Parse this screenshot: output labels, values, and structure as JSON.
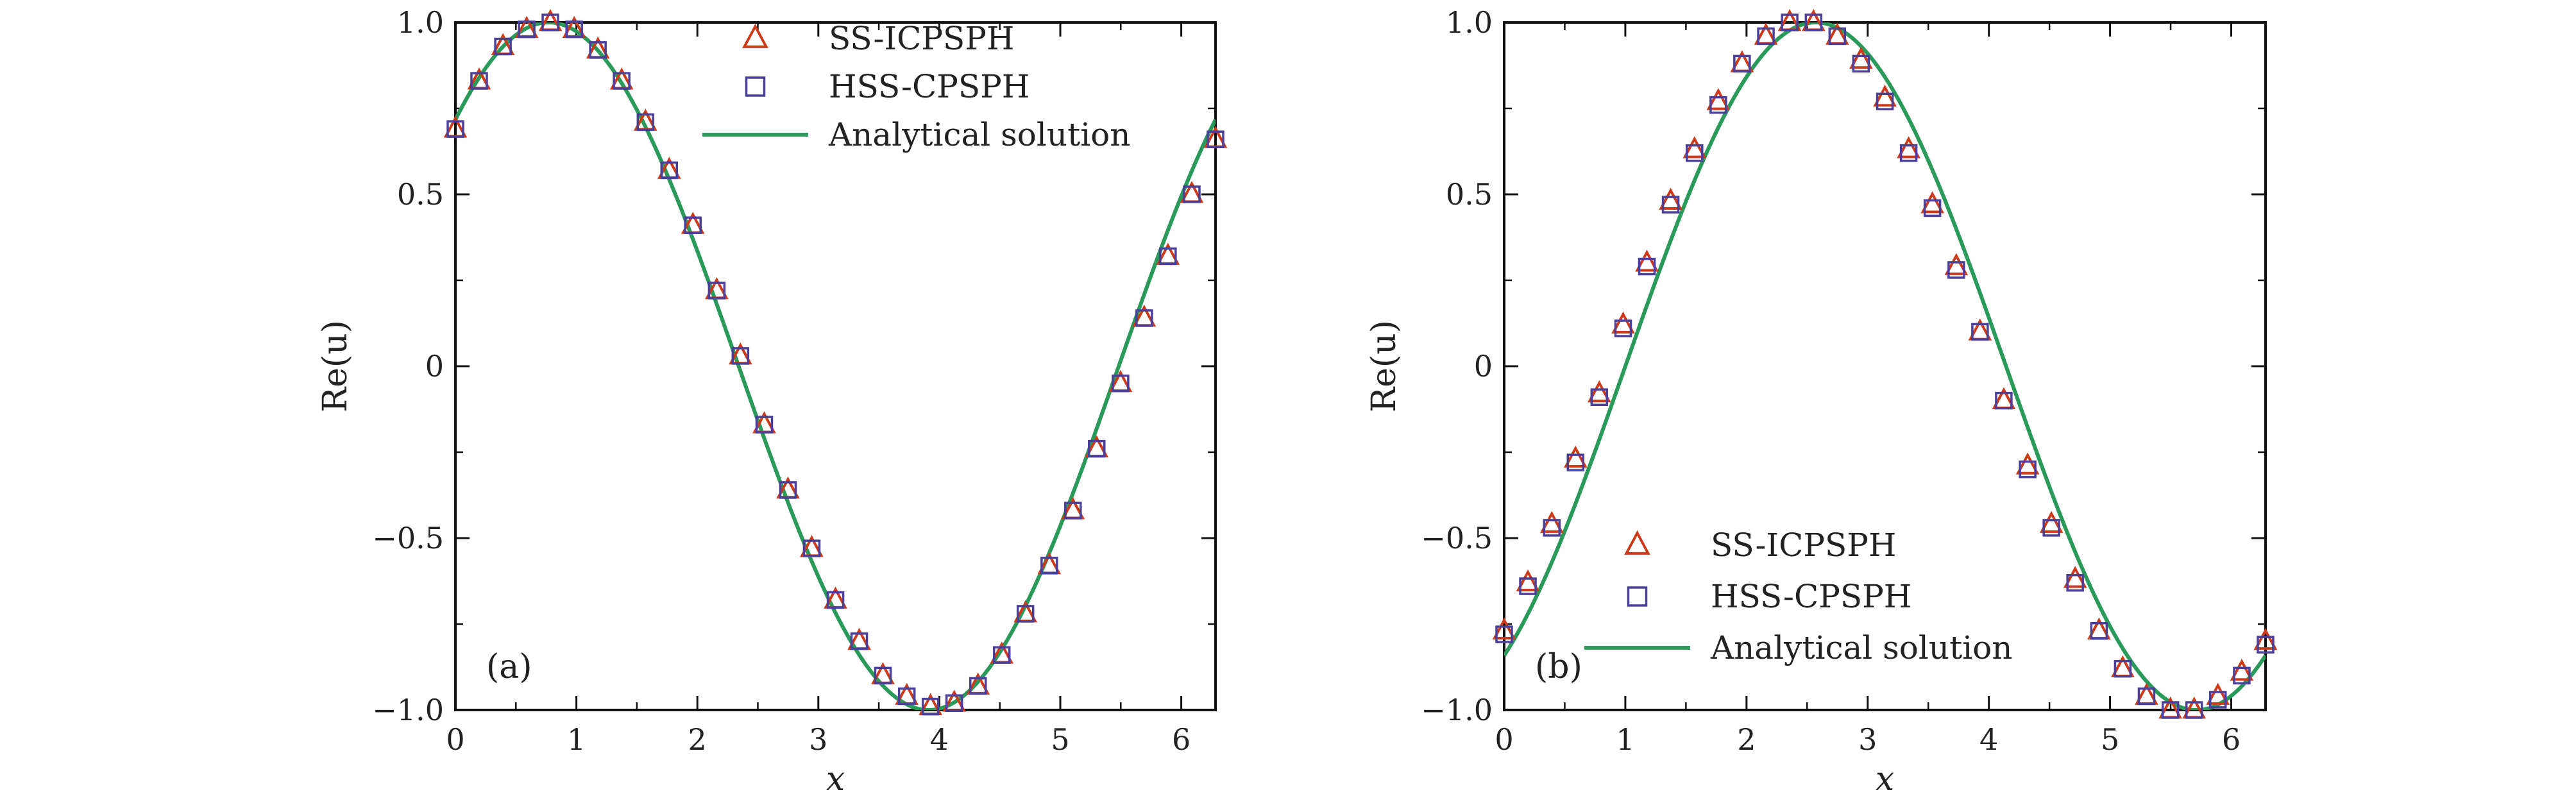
{
  "colors": {
    "triangle": "#cc3a1a",
    "square": "#4a3f9a",
    "line": "#2a9a5a",
    "axis": "#111111"
  },
  "chart_data": [
    {
      "type": "line",
      "panel_label": "(a)",
      "xlabel": "x",
      "ylabel": "Re(u)",
      "xlim": [
        0,
        6.2832
      ],
      "ylim": [
        -1.0,
        1.0
      ],
      "xticks": [
        0,
        1,
        2,
        3,
        4,
        5,
        6
      ],
      "xtick_labels": [
        "0",
        "1",
        "2",
        "3",
        "4",
        "5",
        "6"
      ],
      "yticks": [
        -1.0,
        -0.5,
        0,
        0.5,
        1.0
      ],
      "ytick_labels": [
        "−1.0",
        "−0.5",
        "0",
        "0.5",
        "1.0"
      ],
      "legend_position": "top-right",
      "series": [
        {
          "name": "SS-ICPSPH",
          "marker": "triangle",
          "x": [
            0.0,
            0.196,
            0.393,
            0.589,
            0.785,
            0.982,
            1.178,
            1.374,
            1.571,
            1.767,
            1.963,
            2.16,
            2.356,
            2.553,
            2.749,
            2.945,
            3.142,
            3.338,
            3.534,
            3.731,
            3.927,
            4.123,
            4.32,
            4.516,
            4.712,
            4.909,
            5.105,
            5.301,
            5.498,
            5.694,
            5.89,
            6.087,
            6.283
          ],
          "y": [
            0.69,
            0.83,
            0.93,
            0.98,
            1.0,
            0.98,
            0.92,
            0.83,
            0.71,
            0.57,
            0.41,
            0.22,
            0.03,
            -0.17,
            -0.36,
            -0.53,
            -0.68,
            -0.8,
            -0.9,
            -0.96,
            -0.99,
            -0.98,
            -0.93,
            -0.84,
            -0.72,
            -0.58,
            -0.42,
            -0.24,
            -0.05,
            0.14,
            0.32,
            0.5,
            0.66
          ]
        },
        {
          "name": "HSS-CPSPH",
          "marker": "square",
          "x": [
            0.0,
            0.196,
            0.393,
            0.589,
            0.785,
            0.982,
            1.178,
            1.374,
            1.571,
            1.767,
            1.963,
            2.16,
            2.356,
            2.553,
            2.749,
            2.945,
            3.142,
            3.338,
            3.534,
            3.731,
            3.927,
            4.123,
            4.32,
            4.516,
            4.712,
            4.909,
            5.105,
            5.301,
            5.498,
            5.694,
            5.89,
            6.087,
            6.283
          ],
          "y": [
            0.69,
            0.83,
            0.93,
            0.98,
            1.0,
            0.98,
            0.92,
            0.83,
            0.71,
            0.57,
            0.41,
            0.22,
            0.03,
            -0.17,
            -0.36,
            -0.53,
            -0.68,
            -0.8,
            -0.9,
            -0.96,
            -0.99,
            -0.98,
            -0.93,
            -0.84,
            -0.72,
            -0.58,
            -0.42,
            -0.24,
            -0.05,
            0.14,
            0.32,
            0.5,
            0.66
          ]
        },
        {
          "name": "Analytical solution",
          "marker": "line",
          "function": "sin(x + 0.8)",
          "phase": 0.8
        }
      ]
    },
    {
      "type": "line",
      "panel_label": "(b)",
      "xlabel": "x",
      "ylabel": "Re(u)",
      "xlim": [
        0,
        6.2832
      ],
      "ylim": [
        -1.0,
        1.0
      ],
      "xticks": [
        0,
        1,
        2,
        3,
        4,
        5,
        6
      ],
      "xtick_labels": [
        "0",
        "1",
        "2",
        "3",
        "4",
        "5",
        "6"
      ],
      "yticks": [
        -1.0,
        -0.5,
        0,
        0.5,
        1.0
      ],
      "ytick_labels": [
        "−1.0",
        "−0.5",
        "0",
        "0.5",
        "1.0"
      ],
      "legend_position": "bottom-left",
      "series": [
        {
          "name": "SS-ICPSPH",
          "marker": "triangle",
          "x": [
            0.0,
            0.196,
            0.393,
            0.589,
            0.785,
            0.982,
            1.178,
            1.374,
            1.571,
            1.767,
            1.963,
            2.16,
            2.356,
            2.553,
            2.749,
            2.945,
            3.142,
            3.338,
            3.534,
            3.731,
            3.927,
            4.123,
            4.32,
            4.516,
            4.712,
            4.909,
            5.105,
            5.301,
            5.498,
            5.694,
            5.89,
            6.087,
            6.283
          ],
          "y": [
            -0.77,
            -0.63,
            -0.46,
            -0.27,
            -0.08,
            0.12,
            0.3,
            0.48,
            0.63,
            0.77,
            0.88,
            0.96,
            1.0,
            1.0,
            0.96,
            0.89,
            0.78,
            0.63,
            0.47,
            0.29,
            0.1,
            -0.1,
            -0.29,
            -0.46,
            -0.62,
            -0.77,
            -0.88,
            -0.96,
            -1.0,
            -1.0,
            -0.96,
            -0.89,
            -0.8
          ]
        },
        {
          "name": "HSS-CPSPH",
          "marker": "square",
          "x": [
            0.0,
            0.196,
            0.393,
            0.589,
            0.785,
            0.982,
            1.178,
            1.374,
            1.571,
            1.767,
            1.963,
            2.16,
            2.356,
            2.553,
            2.749,
            2.945,
            3.142,
            3.338,
            3.534,
            3.731,
            3.927,
            4.123,
            4.32,
            4.516,
            4.712,
            4.909,
            5.105,
            5.301,
            5.498,
            5.694,
            5.89,
            6.087,
            6.283
          ],
          "y": [
            -0.78,
            -0.64,
            -0.47,
            -0.28,
            -0.09,
            0.11,
            0.29,
            0.47,
            0.62,
            0.76,
            0.88,
            0.96,
            1.0,
            1.0,
            0.96,
            0.88,
            0.77,
            0.62,
            0.46,
            0.28,
            0.1,
            -0.1,
            -0.3,
            -0.47,
            -0.63,
            -0.77,
            -0.88,
            -0.96,
            -1.0,
            -1.0,
            -0.97,
            -0.9,
            -0.81
          ]
        },
        {
          "name": "Analytical solution",
          "marker": "line",
          "function": "sin(x - 1.0)",
          "phase": -1.0
        }
      ]
    }
  ]
}
